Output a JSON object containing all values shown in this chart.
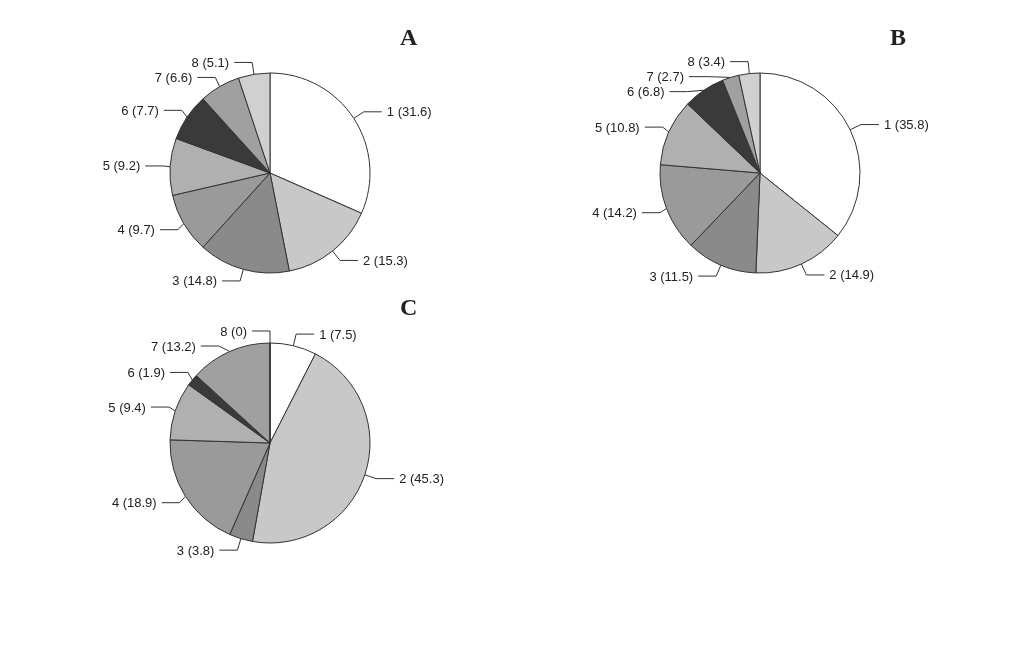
{
  "chart_data": [
    {
      "type": "pie",
      "title": "A",
      "categories": [
        "1",
        "2",
        "3",
        "4",
        "5",
        "6",
        "7",
        "8"
      ],
      "values": [
        31.6,
        15.3,
        14.8,
        9.7,
        9.2,
        7.7,
        6.6,
        5.1
      ],
      "colors": [
        "#ffffff",
        "#c8c8c8",
        "#8a8a8a",
        "#9a9a9a",
        "#b0b0b0",
        "#3a3a3a",
        "#a0a0a0",
        "#d0d0d0"
      ],
      "value_labels": [
        "(31.6)",
        "(15.3)",
        "(14.8)",
        "(9.7)",
        "(9.2)",
        "(7.7)",
        "(6.6)",
        "(5.1)"
      ]
    },
    {
      "type": "pie",
      "title": "B",
      "categories": [
        "1",
        "2",
        "3",
        "4",
        "5",
        "6",
        "7",
        "8"
      ],
      "values": [
        35.8,
        14.9,
        11.5,
        14.2,
        10.8,
        6.8,
        2.7,
        3.4
      ],
      "colors": [
        "#ffffff",
        "#c8c8c8",
        "#8a8a8a",
        "#9a9a9a",
        "#b0b0b0",
        "#3a3a3a",
        "#a0a0a0",
        "#d0d0d0"
      ],
      "value_labels": [
        "(35.8)",
        "(14.9)",
        "(11.5)",
        "(14.2)",
        "(10.8)",
        "(6.8)",
        "(2.7)",
        "(3.4)"
      ]
    },
    {
      "type": "pie",
      "title": "C",
      "categories": [
        "1",
        "2",
        "3",
        "4",
        "5",
        "6",
        "7",
        "8"
      ],
      "values": [
        7.5,
        45.3,
        3.8,
        18.9,
        9.4,
        1.9,
        13.2,
        0
      ],
      "colors": [
        "#ffffff",
        "#c8c8c8",
        "#8a8a8a",
        "#9a9a9a",
        "#b0b0b0",
        "#3a3a3a",
        "#a0a0a0",
        "#d0d0d0"
      ],
      "value_labels": [
        "(7.5)",
        "(45.3)",
        "(3.8)",
        "(18.9)",
        "(9.4)",
        "(1.9)",
        "(13.2)",
        "(0)"
      ]
    }
  ]
}
